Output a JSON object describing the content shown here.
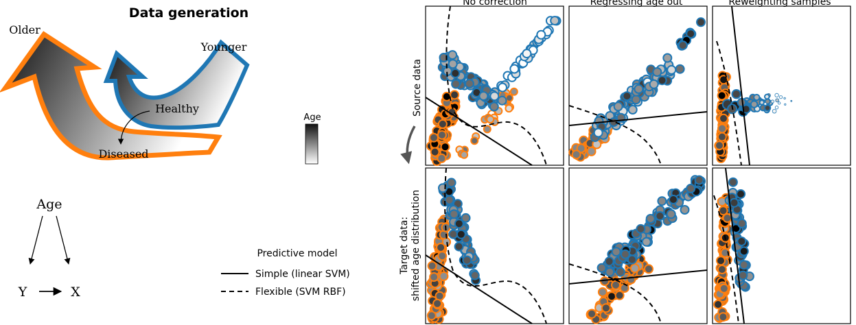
{
  "colors": {
    "older": "#ff7f0e",
    "younger": "#1f77b4",
    "line": "#000000",
    "panel_border": "#000000"
  },
  "left": {
    "title": "Data generation",
    "older": "Older",
    "younger": "Younger",
    "healthy": "Healthy",
    "diseased": "Diseased",
    "age_bar_label": "Age",
    "dag": {
      "age": "Age",
      "y": "Y",
      "x": "X"
    }
  },
  "legend": {
    "title": "Predictive model",
    "simple": "Simple (linear SVM)",
    "flexible": "Flexible (SVM RBF)"
  },
  "grid": {
    "columns": [
      "No correction",
      "Regressing age out",
      "Reweighting samples"
    ],
    "row_source": "Source data",
    "row_target_line1": "Target data:",
    "row_target_line2": "shifted age distribution"
  },
  "icons": {
    "row_arrow": "curved-down-arrow-icon",
    "dag_arrow": "right-arrow-icon"
  }
}
